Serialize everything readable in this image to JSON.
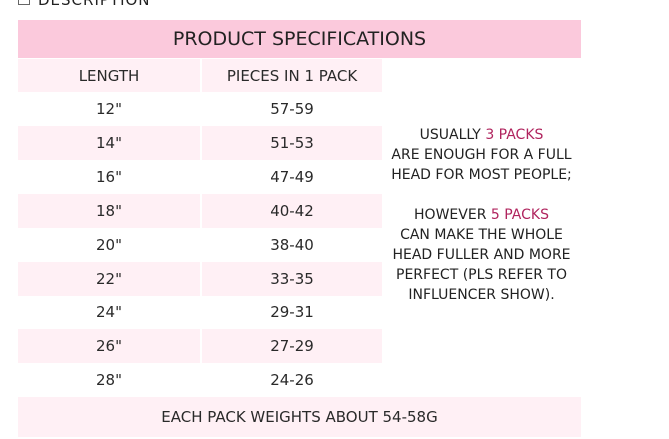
{
  "section_heading": "DESCRIPTION",
  "title": "PRODUCT SPECIFICATIONS",
  "columns": [
    "LENGTH",
    "PIECES IN 1 PACK"
  ],
  "rows": [
    [
      "12\"",
      "57-59"
    ],
    [
      "14\"",
      "51-53"
    ],
    [
      "16\"",
      "47-49"
    ],
    [
      "18\"",
      "40-42"
    ],
    [
      "20\"",
      "38-40"
    ],
    [
      "22\"",
      "33-35"
    ],
    [
      "24\"",
      "29-31"
    ],
    [
      "26\"",
      "27-29"
    ],
    [
      "28\"",
      "24-26"
    ]
  ],
  "note": {
    "p1_a": "USUALLY ",
    "p1_hl": "3 PACKS",
    "p1_b": "ARE ENOUGH FOR A FULL HEAD FOR MOST PEOPLE;",
    "p2_a": "HOWEVER ",
    "p2_hl": "5 PACKS",
    "p2_b": "CAN MAKE THE WHOLE HEAD FULLER AND MORE PERFECT (PLS REFER TO INFLUENCER SHOW)."
  },
  "footer": "EACH PACK WEIGHTS ABOUT 54-58G",
  "colors": {
    "header_pink": "#fbc9dc",
    "row_pink": "#fff0f5",
    "highlight": "#b0245e"
  }
}
